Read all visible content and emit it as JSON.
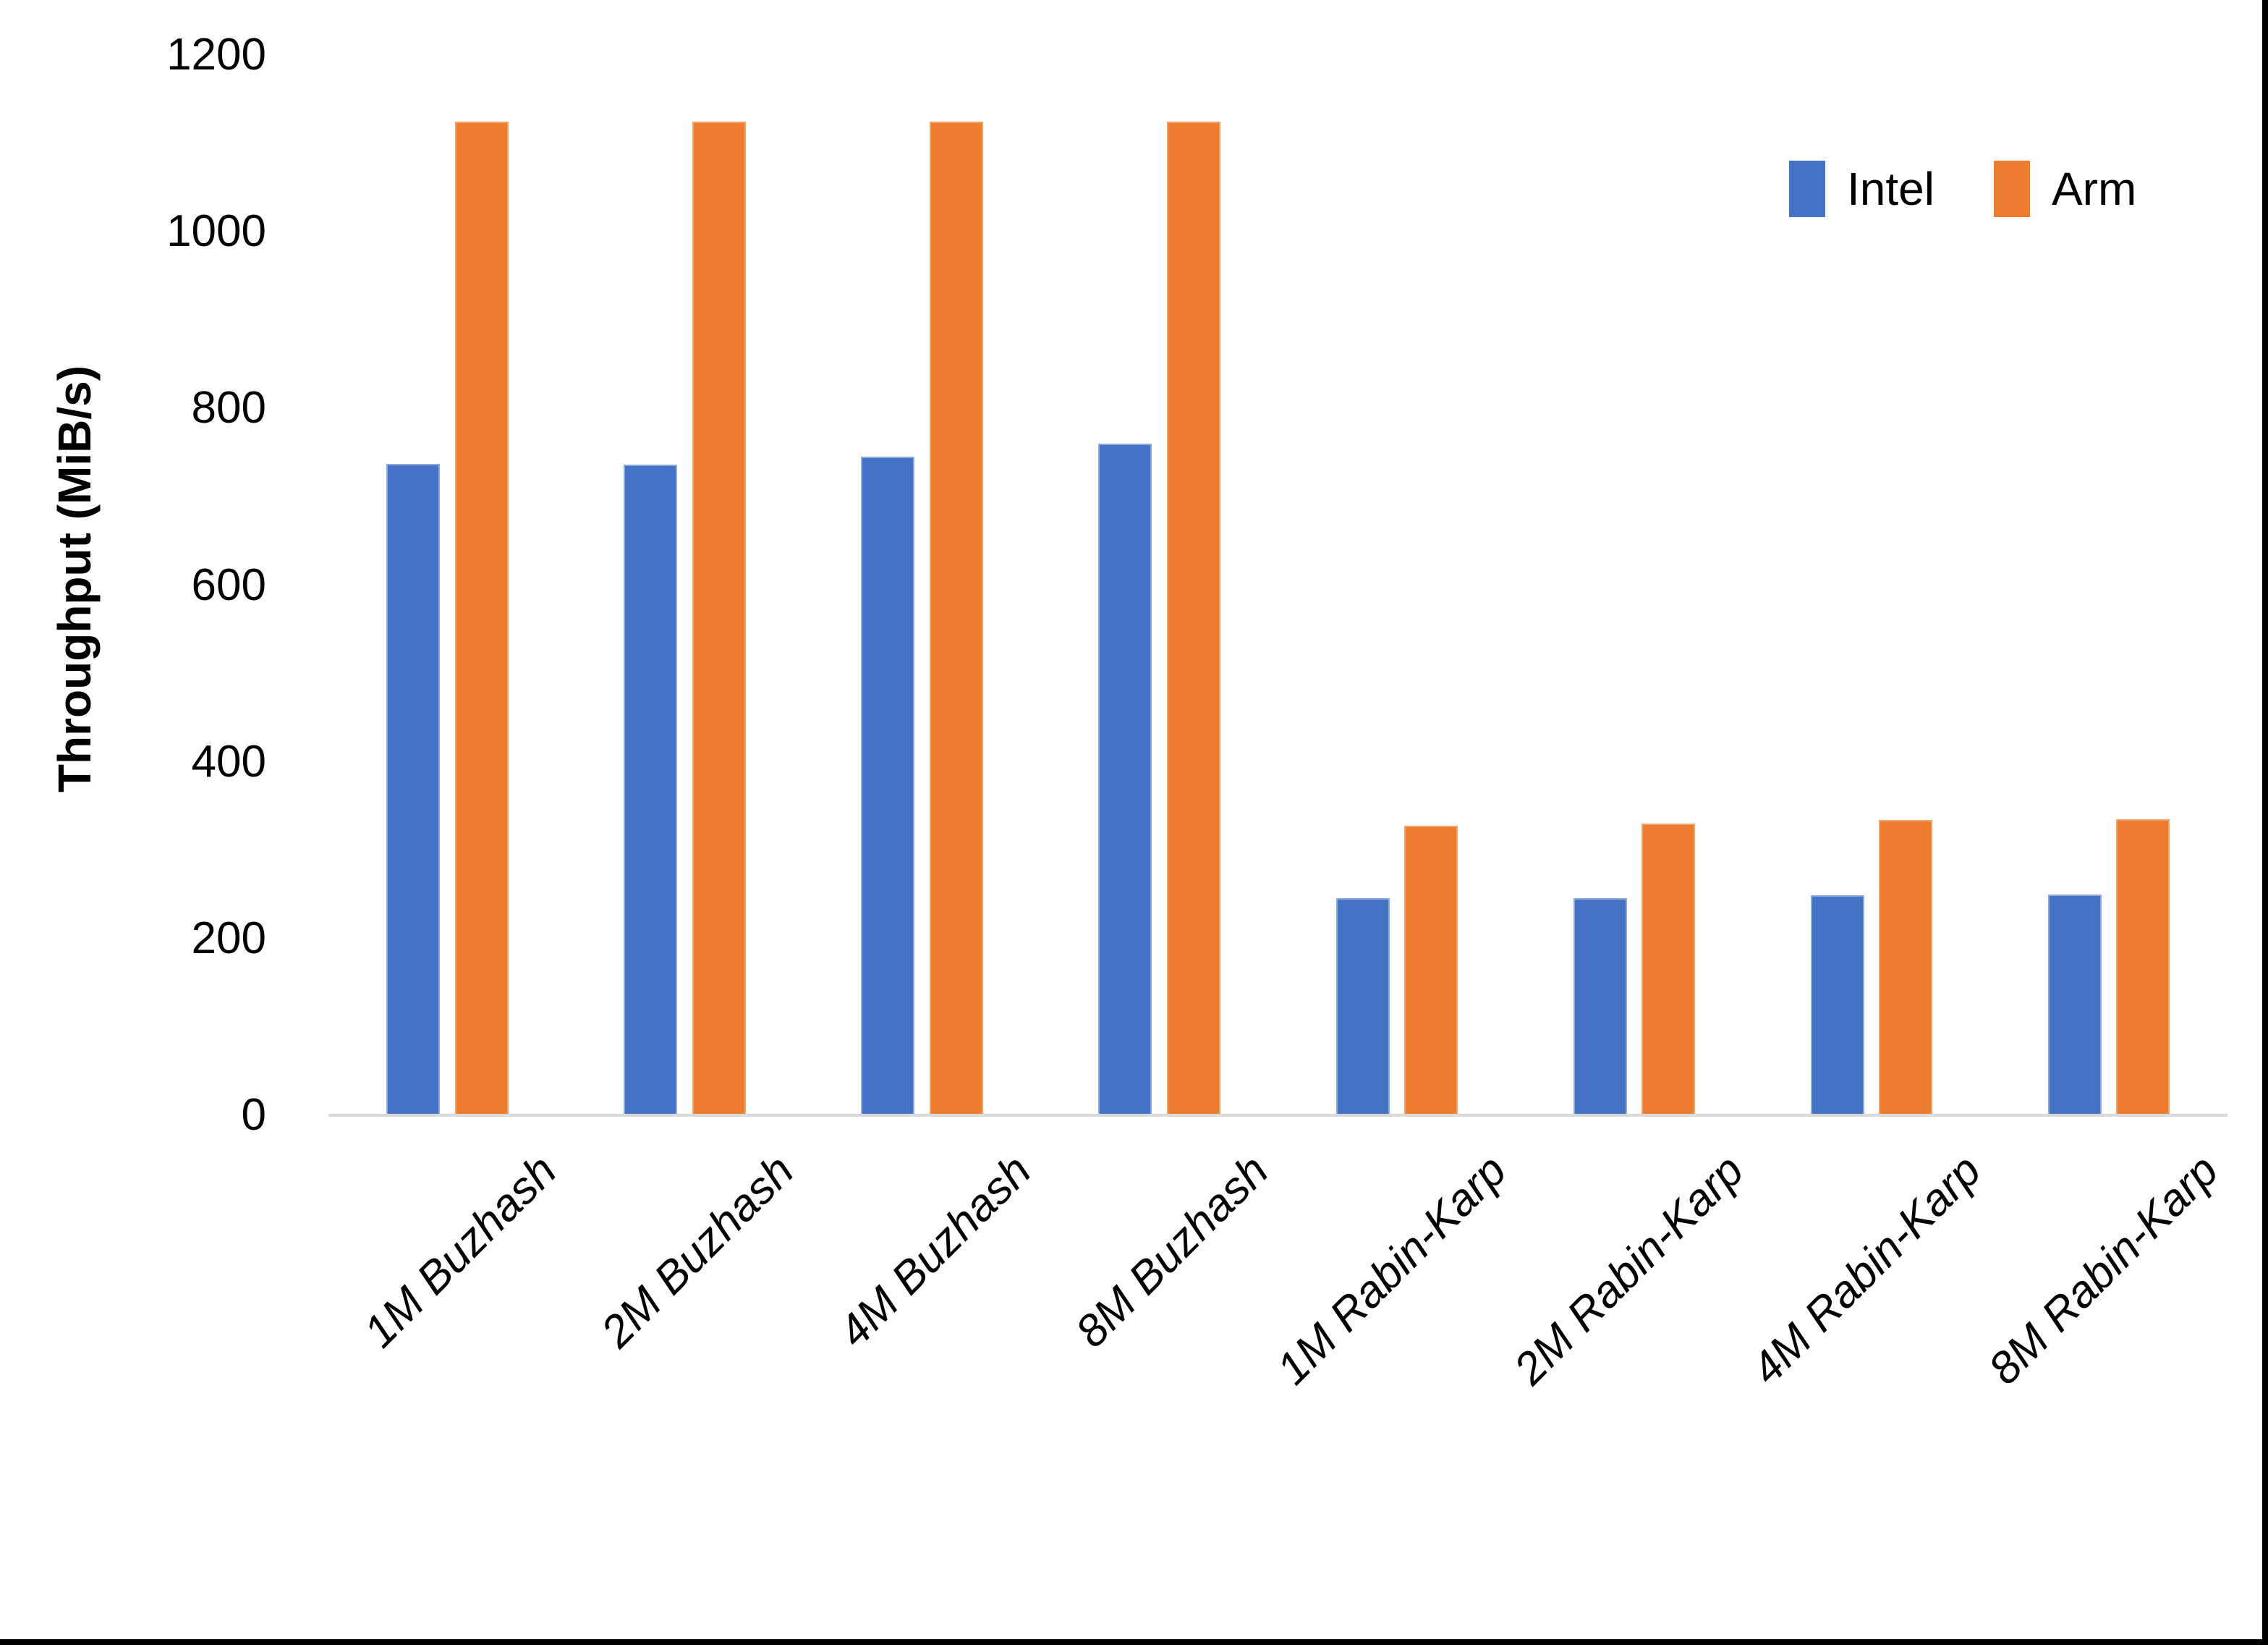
{
  "chart_data": {
    "type": "bar",
    "title": "",
    "xlabel": "",
    "ylabel": "Throughput (MiB/s)",
    "ylim": [
      0,
      1200
    ],
    "yticks": [
      0,
      200,
      400,
      600,
      800,
      1000,
      1200
    ],
    "grid": false,
    "legend_position": "top-right",
    "axis_line_color": "#d9d9d9",
    "categories": [
      "1M Buzhash",
      "2M Buzhash",
      "4M Buzhash",
      "8M Buzhash",
      "1M Rabin-Karp",
      "2M Rabin-Karp",
      "4M Rabin-Karp",
      "8M Rabin-Karp"
    ],
    "series": [
      {
        "name": "Intel",
        "color": "#4472C4",
        "edge_color": "#8EA9DB",
        "values": [
          737,
          736,
          745,
          760,
          246,
          246,
          249,
          250
        ]
      },
      {
        "name": "Arm",
        "color": "#ED7D31",
        "edge_color": "#F2A368",
        "values": [
          1125,
          1125,
          1125,
          1125,
          328,
          330,
          334,
          335
        ]
      }
    ]
  },
  "legend": {
    "items": [
      {
        "label": "Intel",
        "color": "#4472C4"
      },
      {
        "label": "Arm",
        "color": "#ED7D31"
      }
    ]
  }
}
